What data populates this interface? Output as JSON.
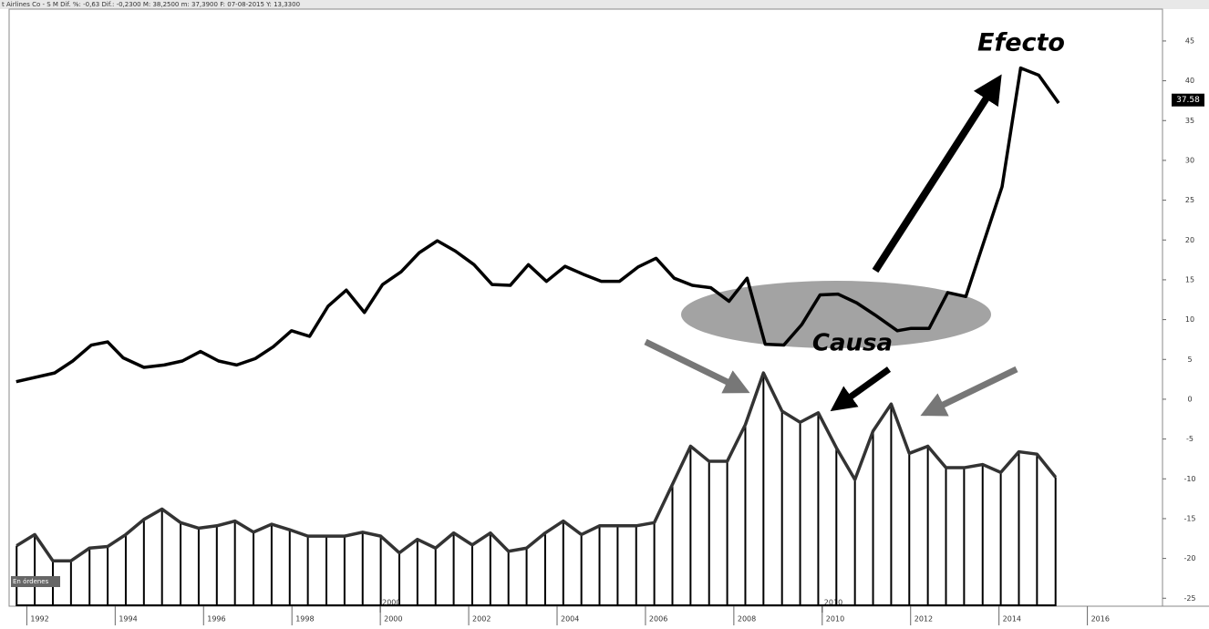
{
  "chart_data": {
    "type": "line",
    "header": "t Airlines Co - S M Dif. %: -0,63 Dif.: -0,2300 M: 38,2500 m: 37,3900 F: 07-08-2015 Y: 13,3300",
    "annotations": [
      "Efecto",
      "Causa"
    ],
    "panel_label": "En órdenes",
    "last_price": 37.58,
    "xlim": [
      1991.6,
      2017.7
    ],
    "xticks": [
      1992,
      1994,
      1996,
      1998,
      2000,
      2002,
      2004,
      2006,
      2008,
      2010,
      2012,
      2014,
      2016
    ],
    "xticks_major": [
      2000,
      2010
    ],
    "ylim": [
      -26,
      49
    ],
    "yticks": [
      45,
      40,
      35,
      30,
      25,
      20,
      15,
      10,
      5,
      0,
      -5,
      -10,
      -15,
      -20,
      -25
    ],
    "series": [
      {
        "style": "line",
        "color": "#000000",
        "x": [
          1991.76,
          1992.63,
          1993.04,
          1993.46,
          1993.83,
          1994.18,
          1994.65,
          1995.11,
          1995.52,
          1995.93,
          1996.34,
          1996.75,
          1997.17,
          1997.58,
          1997.99,
          1998.4,
          1998.82,
          1999.23,
          1999.64,
          2000.05,
          2000.47,
          2000.88,
          2001.29,
          2001.7,
          2002.12,
          2002.53,
          2002.94,
          2003.35,
          2003.76,
          2004.18,
          2004.59,
          2005.0,
          2005.41,
          2005.83,
          2006.24,
          2006.65,
          2007.06,
          2007.48,
          2007.89,
          2008.3,
          2008.71,
          2009.13,
          2009.54,
          2009.95,
          2010.36,
          2010.78,
          2011.19,
          2011.7,
          2012.01,
          2012.42,
          2012.84,
          2013.25,
          2013.66,
          2014.07,
          2014.49,
          2014.9,
          2015.35
        ],
        "values": [
          2.2,
          3.3,
          4.8,
          6.8,
          7.2,
          5.2,
          4.0,
          4.3,
          4.8,
          6.0,
          4.8,
          4.3,
          5.1,
          6.6,
          8.6,
          7.9,
          11.7,
          13.7,
          10.9,
          14.4,
          16.0,
          18.4,
          19.9,
          18.6,
          16.9,
          14.4,
          14.3,
          16.9,
          14.8,
          16.7,
          15.7,
          14.8,
          14.8,
          16.6,
          17.7,
          15.2,
          14.3,
          14.0,
          12.3,
          15.2,
          6.9,
          6.8,
          9.4,
          13.1,
          13.2,
          12.1,
          10.6,
          8.6,
          8.9,
          8.9,
          13.4,
          12.9,
          19.8,
          26.7,
          41.6,
          40.7,
          37.2
        ]
      },
      {
        "style": "bars",
        "color": "#000000",
        "x": [
          1991.77,
          1992.18,
          1992.59,
          1993.0,
          1993.42,
          1993.83,
          1994.24,
          1994.65,
          1995.06,
          1995.48,
          1995.89,
          1996.3,
          1996.71,
          1997.13,
          1997.54,
          1997.95,
          1998.36,
          1998.78,
          1999.19,
          1999.6,
          2000.01,
          2000.43,
          2000.84,
          2001.25,
          2001.66,
          2002.08,
          2002.49,
          2002.9,
          2003.31,
          2003.73,
          2004.14,
          2004.55,
          2004.96,
          2005.37,
          2005.79,
          2006.2,
          2006.61,
          2007.02,
          2007.44,
          2007.85,
          2008.26,
          2008.67,
          2009.09,
          2009.5,
          2009.91,
          2010.32,
          2010.74,
          2011.15,
          2011.56,
          2011.97,
          2012.39,
          2012.8,
          2013.21,
          2013.63,
          2014.04,
          2014.45,
          2014.86,
          2015.28
        ],
        "values": [
          -18.4,
          -17.0,
          -20.3,
          -20.3,
          -18.7,
          -18.5,
          -17.0,
          -15.1,
          -13.8,
          -15.5,
          -16.2,
          -15.9,
          -15.3,
          -16.7,
          -15.7,
          -16.4,
          -17.2,
          -17.2,
          -17.2,
          -16.7,
          -17.2,
          -19.3,
          -17.6,
          -18.7,
          -16.8,
          -18.3,
          -16.8,
          -19.1,
          -18.7,
          -16.8,
          -15.3,
          -17.0,
          -15.9,
          -15.9,
          -15.9,
          -15.5,
          -10.7,
          -5.9,
          -7.8,
          -7.8,
          -3.2,
          3.3,
          -1.5,
          -2.9,
          -1.7,
          -6.1,
          -10.1,
          -4.0,
          -0.6,
          -6.8,
          -5.9,
          -8.6,
          -8.6,
          -8.2,
          -9.2,
          -6.6,
          -6.9,
          -9.8
        ]
      }
    ]
  }
}
